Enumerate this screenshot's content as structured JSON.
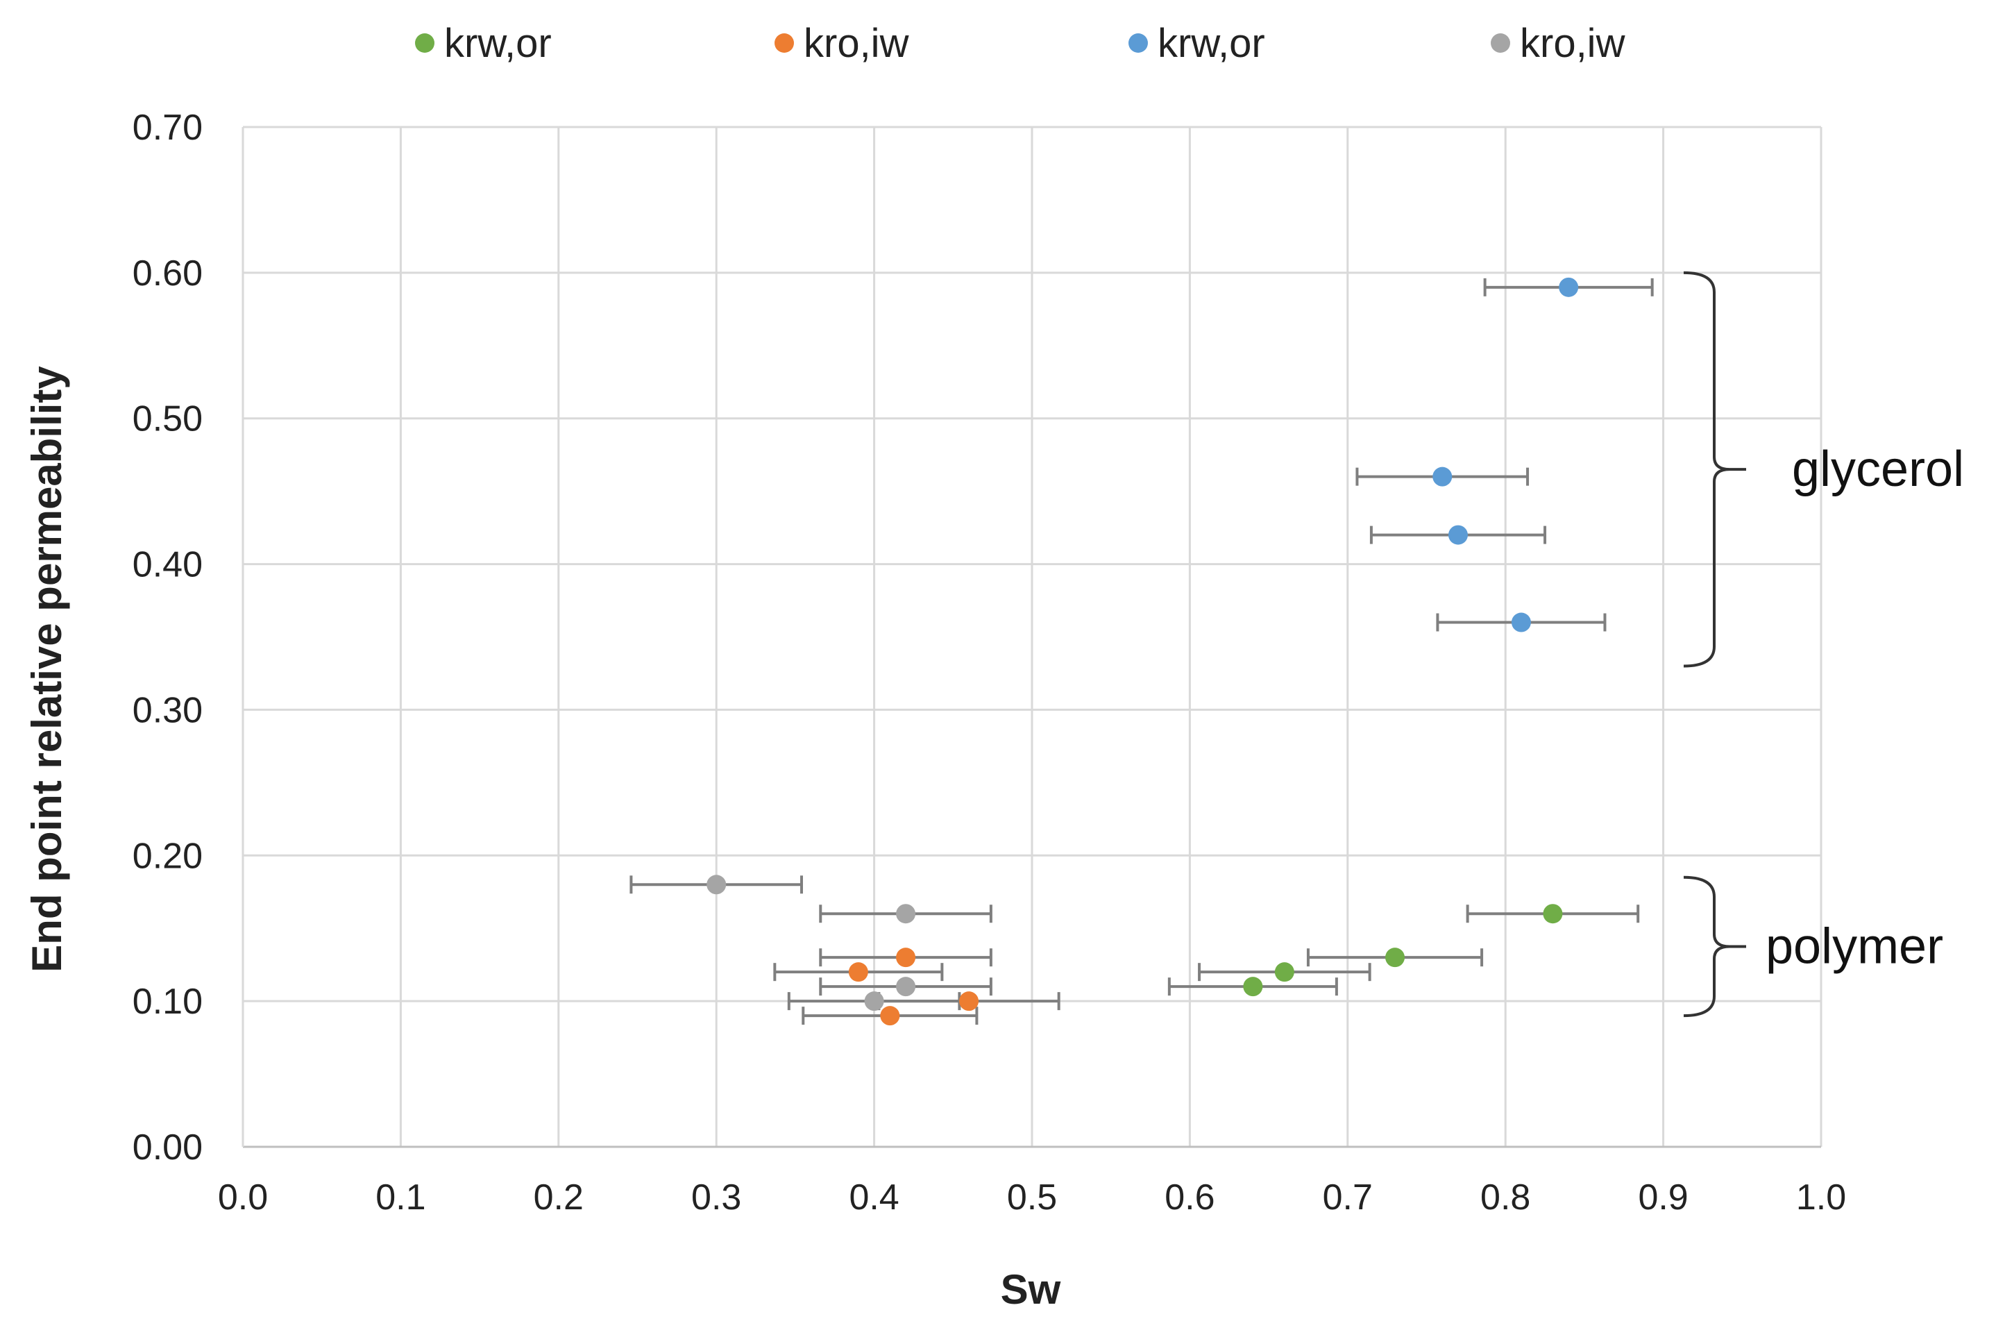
{
  "chart_data": {
    "type": "scatter",
    "title": "",
    "xlabel": "Sw",
    "ylabel": "End point relative permeability",
    "xlim": [
      0,
      1.0
    ],
    "ylim": [
      0,
      0.7
    ],
    "x_ticks": [
      0,
      0.1,
      0.2,
      0.3,
      0.4,
      0.5,
      0.6,
      0.7,
      0.8,
      0.9,
      1.0
    ],
    "x_tick_labels": [
      "0.0",
      "0.1",
      "0.2",
      "0.3",
      "0.4",
      "0.5",
      "0.6",
      "0.7",
      "0.8",
      "0.9",
      "1.0"
    ],
    "y_ticks": [
      0,
      0.1,
      0.2,
      0.3,
      0.4,
      0.5,
      0.6,
      0.7
    ],
    "y_tick_labels": [
      "0.00",
      "0.10",
      "0.20",
      "0.30",
      "0.40",
      "0.50",
      "0.60",
      "0.70"
    ],
    "grid": true,
    "legend_position": "top",
    "error_bar_color": "#7f7f7f",
    "series": [
      {
        "name": "krw,or",
        "color": "#70ad47",
        "points": [
          {
            "x": 0.83,
            "y": 0.16,
            "xerr": 0.054
          },
          {
            "x": 0.73,
            "y": 0.13,
            "xerr": 0.055
          },
          {
            "x": 0.66,
            "y": 0.12,
            "xerr": 0.054
          },
          {
            "x": 0.64,
            "y": 0.11,
            "xerr": 0.053
          }
        ]
      },
      {
        "name": "kro,iw",
        "color": "#ed7d31",
        "points": [
          {
            "x": 0.42,
            "y": 0.13,
            "xerr": 0.054
          },
          {
            "x": 0.39,
            "y": 0.12,
            "xerr": 0.053
          },
          {
            "x": 0.46,
            "y": 0.1,
            "xerr": 0.057
          },
          {
            "x": 0.41,
            "y": 0.09,
            "xerr": 0.055
          }
        ]
      },
      {
        "name": "krw,or",
        "color": "#5b9bd5",
        "points": [
          {
            "x": 0.84,
            "y": 0.59,
            "xerr": 0.053
          },
          {
            "x": 0.76,
            "y": 0.46,
            "xerr": 0.054
          },
          {
            "x": 0.77,
            "y": 0.42,
            "xerr": 0.055
          },
          {
            "x": 0.81,
            "y": 0.36,
            "xerr": 0.053
          }
        ]
      },
      {
        "name": "kro,iw",
        "color": "#a5a5a5",
        "points": [
          {
            "x": 0.3,
            "y": 0.18,
            "xerr": 0.054
          },
          {
            "x": 0.42,
            "y": 0.16,
            "xerr": 0.054
          },
          {
            "x": 0.42,
            "y": 0.11,
            "xerr": 0.054
          },
          {
            "x": 0.4,
            "y": 0.1,
            "xerr": 0.054
          }
        ]
      }
    ],
    "annotations": [
      {
        "text": "glycerol",
        "y_range": [
          0.33,
          0.6
        ]
      },
      {
        "text": "polymer",
        "y_range": [
          0.09,
          0.185
        ]
      }
    ]
  }
}
